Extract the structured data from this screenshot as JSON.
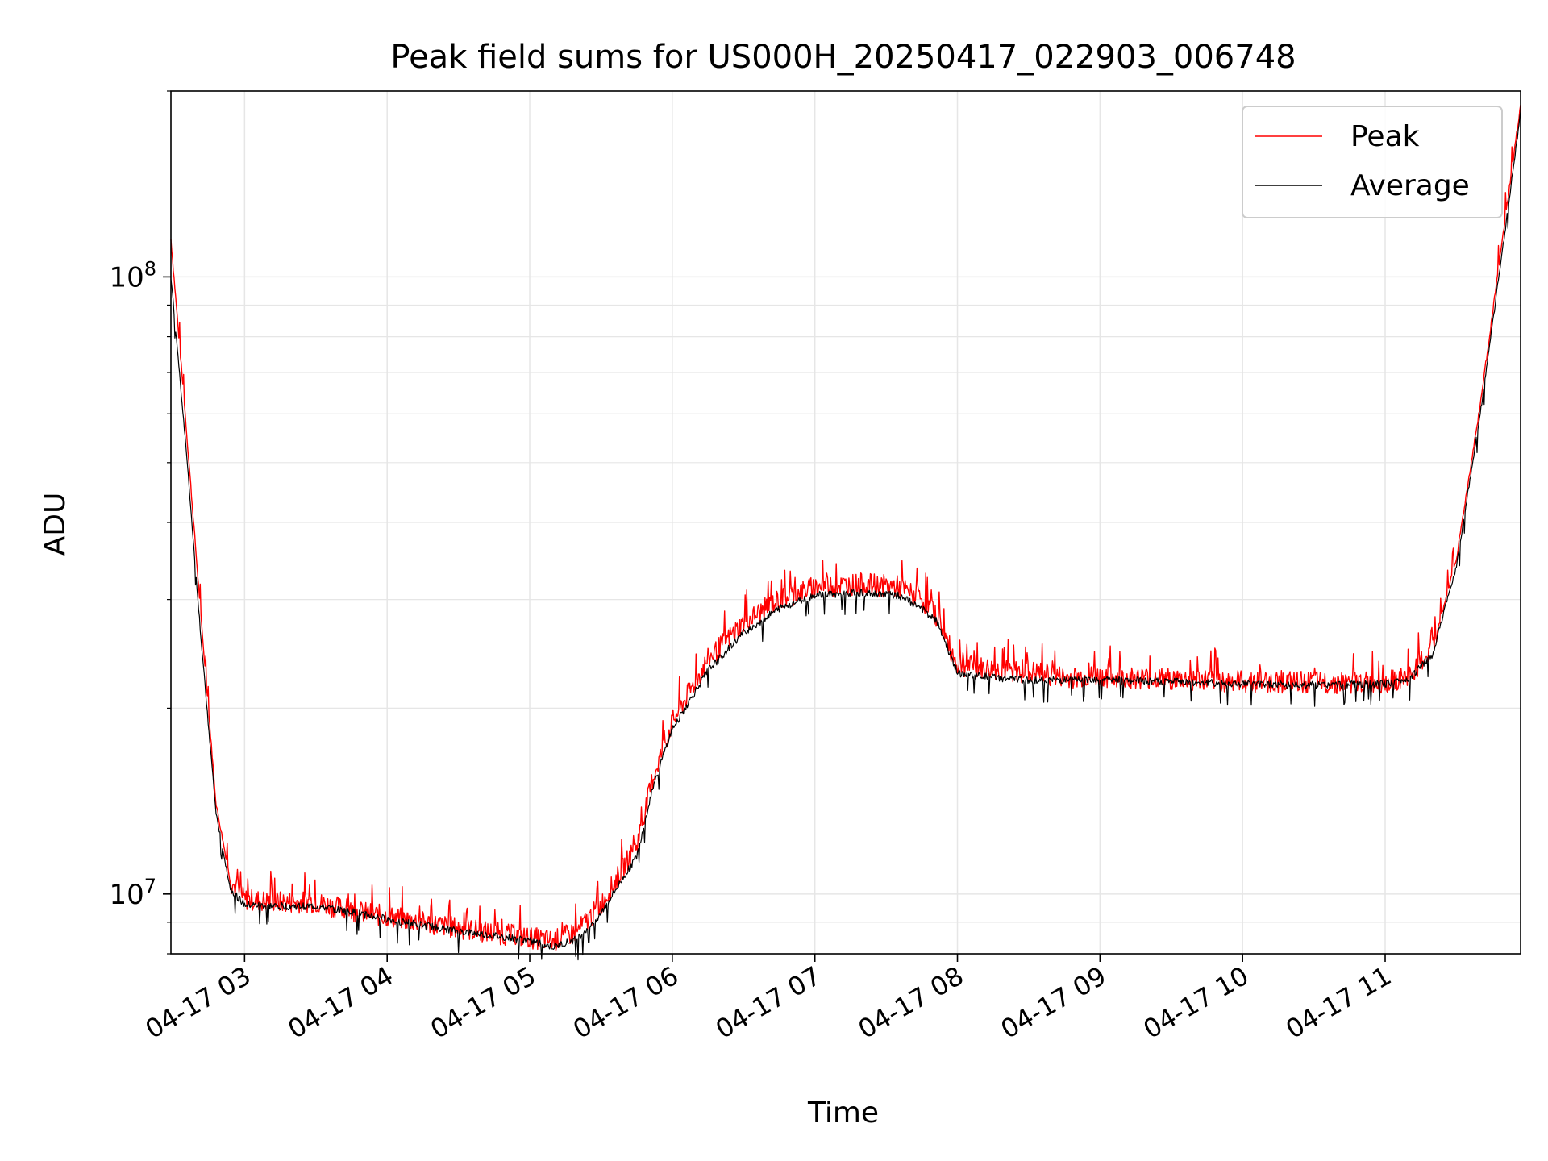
{
  "chart_data": {
    "type": "line",
    "title": "Peak field sums for US000H_20250417_022903_006748",
    "xlabel": "Time",
    "ylabel": "ADU",
    "y_scale": "log",
    "grid": true,
    "legend": {
      "placement": "top-right",
      "entries": [
        {
          "name": "Peak",
          "color": "#ff0000"
        },
        {
          "name": "Average",
          "color": "#000000"
        }
      ]
    },
    "xlim": [
      "2025-04-17 02:29",
      "2025-04-17 11:57"
    ],
    "ylim": [
      8000000,
      200000000
    ],
    "x_ticks": [
      {
        "x": "2025-04-17 03:00",
        "label": "04-17 03"
      },
      {
        "x": "2025-04-17 04:00",
        "label": "04-17 04"
      },
      {
        "x": "2025-04-17 05:00",
        "label": "04-17 05"
      },
      {
        "x": "2025-04-17 06:00",
        "label": "04-17 06"
      },
      {
        "x": "2025-04-17 07:00",
        "label": "04-17 07"
      },
      {
        "x": "2025-04-17 08:00",
        "label": "04-17 08"
      },
      {
        "x": "2025-04-17 09:00",
        "label": "04-17 09"
      },
      {
        "x": "2025-04-17 10:00",
        "label": "04-17 10"
      },
      {
        "x": "2025-04-17 11:00",
        "label": "04-17 11"
      }
    ],
    "y_ticks": [
      {
        "y": 10000000,
        "base": "10",
        "exp": "7"
      },
      {
        "y": 100000000,
        "base": "10",
        "exp": "8"
      }
    ],
    "x": [
      "2025-04-17 02:29",
      "2025-04-17 02:35",
      "2025-04-17 02:42",
      "2025-04-17 02:48",
      "2025-04-17 02:54",
      "2025-04-17 03:00",
      "2025-04-17 03:15",
      "2025-04-17 03:30",
      "2025-04-17 03:45",
      "2025-04-17 04:00",
      "2025-04-17 04:30",
      "2025-04-17 05:00",
      "2025-04-17 05:10",
      "2025-04-17 05:20",
      "2025-04-17 05:30",
      "2025-04-17 05:45",
      "2025-04-17 05:52",
      "2025-04-17 06:00",
      "2025-04-17 06:15",
      "2025-04-17 06:30",
      "2025-04-17 06:45",
      "2025-04-17 07:00",
      "2025-04-17 07:20",
      "2025-04-17 07:35",
      "2025-04-17 07:45",
      "2025-04-17 07:52",
      "2025-04-17 07:55",
      "2025-04-17 08:00",
      "2025-04-17 08:20",
      "2025-04-17 08:35",
      "2025-04-17 08:45",
      "2025-04-17 09:00",
      "2025-04-17 09:30",
      "2025-04-17 10:00",
      "2025-04-17 10:30",
      "2025-04-17 11:00",
      "2025-04-17 11:10",
      "2025-04-17 11:20",
      "2025-04-17 11:30",
      "2025-04-17 11:40",
      "2025-04-17 11:50",
      "2025-04-17 11:57"
    ],
    "series": [
      {
        "name": "Peak",
        "values": [
          115000000,
          60000000,
          27000000,
          14000000,
          10500000,
          9800000,
          9700000,
          9700000,
          9400000,
          9200000,
          8800000,
          8500000,
          8400000,
          8700000,
          9600000,
          12000000,
          15500000,
          19000000,
          24000000,
          27500000,
          30000000,
          31500000,
          31800000,
          31500000,
          30000000,
          28000000,
          26000000,
          23500000,
          23000000,
          22800000,
          22400000,
          22500000,
          22300000,
          22100000,
          22000000,
          22000000,
          22500000,
          25000000,
          35000000,
          62000000,
          120000000,
          190000000
        ]
      },
      {
        "name": "Average",
        "values": [
          100000000,
          55000000,
          25000000,
          13500000,
          10200000,
          9600000,
          9550000,
          9550000,
          9350000,
          9100000,
          8700000,
          8400000,
          8200000,
          8450000,
          9300000,
          11500000,
          15000000,
          18500000,
          23000000,
          26500000,
          29000000,
          30500000,
          30800000,
          30500000,
          29000000,
          27500000,
          25500000,
          22800000,
          22300000,
          22200000,
          22200000,
          22300000,
          22100000,
          21900000,
          21800000,
          21900000,
          22300000,
          24500000,
          34000000,
          60000000,
          115000000,
          185000000
        ]
      }
    ]
  }
}
